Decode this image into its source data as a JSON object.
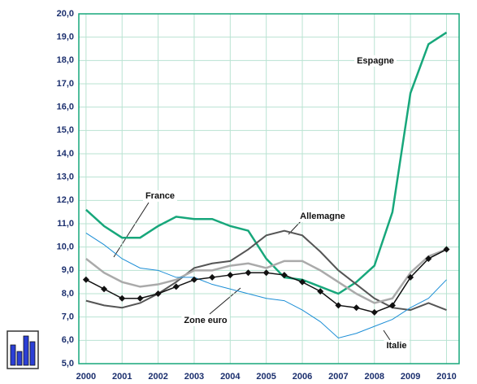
{
  "chart_data": {
    "type": "line",
    "x": [
      2000,
      2000.5,
      2001,
      2001.5,
      2002,
      2002.5,
      2003,
      2003.5,
      2004,
      2004.5,
      2005,
      2005.5,
      2006,
      2006.5,
      2007,
      2007.5,
      2008,
      2008.5,
      2009,
      2009.5,
      2010
    ],
    "series": [
      {
        "name": "Espagne",
        "color": "#17a77b",
        "values": [
          11.6,
          10.9,
          10.4,
          10.4,
          10.9,
          11.3,
          11.2,
          11.2,
          10.9,
          10.7,
          9.5,
          8.7,
          8.6,
          8.3,
          8.0,
          8.5,
          9.2,
          11.5,
          16.6,
          18.7,
          19.2
        ]
      },
      {
        "name": "Allemagne",
        "color": "#555555",
        "values": [
          7.7,
          7.5,
          7.4,
          7.6,
          8.0,
          8.5,
          9.1,
          9.3,
          9.4,
          9.9,
          10.5,
          10.7,
          10.5,
          9.8,
          9.0,
          8.4,
          7.8,
          7.4,
          7.3,
          7.6,
          7.3
        ]
      },
      {
        "name": "France",
        "color": "#aaaaaa",
        "values": [
          9.5,
          8.9,
          8.5,
          8.3,
          8.4,
          8.6,
          9.0,
          9.0,
          9.2,
          9.3,
          9.1,
          9.4,
          9.4,
          9.0,
          8.5,
          8.0,
          7.6,
          7.8,
          8.9,
          9.6,
          9.9
        ]
      },
      {
        "name": "Italie",
        "color": "#1c8ed6",
        "values": [
          10.6,
          10.1,
          9.5,
          9.1,
          9.0,
          8.7,
          8.7,
          8.4,
          8.2,
          8.0,
          7.8,
          7.7,
          7.3,
          6.8,
          6.1,
          6.3,
          6.6,
          6.9,
          7.4,
          7.8,
          8.6
        ]
      },
      {
        "name": "Zone euro",
        "color": "#111111",
        "marker": "diamond",
        "values": [
          8.6,
          8.2,
          7.8,
          7.8,
          8.0,
          8.3,
          8.6,
          8.7,
          8.8,
          8.9,
          8.9,
          8.8,
          8.5,
          8.1,
          7.5,
          7.4,
          7.2,
          7.5,
          8.7,
          9.5,
          9.9
        ]
      }
    ],
    "xlim": [
      1999.8,
      2010.35
    ],
    "xticks": [
      2000,
      2001,
      2002,
      2003,
      2004,
      2005,
      2006,
      2007,
      2008,
      2009,
      2010
    ],
    "ylim": [
      5,
      20
    ],
    "yticks": [
      {
        "value": 5,
        "label": "5,0"
      },
      {
        "value": 6,
        "label": "6,0"
      },
      {
        "value": 7,
        "label": "7,0"
      },
      {
        "value": 8,
        "label": "8,0"
      },
      {
        "value": 9,
        "label": "9,0"
      },
      {
        "value": 10,
        "label": "10,0"
      },
      {
        "value": 11,
        "label": "11,0"
      },
      {
        "value": 12,
        "label": "12,0"
      },
      {
        "value": 13,
        "label": "13,0"
      },
      {
        "value": 14,
        "label": "14,0"
      },
      {
        "value": 15,
        "label": "15,0"
      },
      {
        "value": 16,
        "label": "16,0"
      },
      {
        "value": 17,
        "label": "17,0"
      },
      {
        "value": 18,
        "label": "18,0"
      },
      {
        "value": 19,
        "label": "19,0"
      },
      {
        "value": 20,
        "label": "20,0"
      }
    ],
    "grid": true,
    "annotations": [
      "Espagne",
      "France",
      "Allemagne",
      "Zone euro",
      "Italie"
    ]
  }
}
